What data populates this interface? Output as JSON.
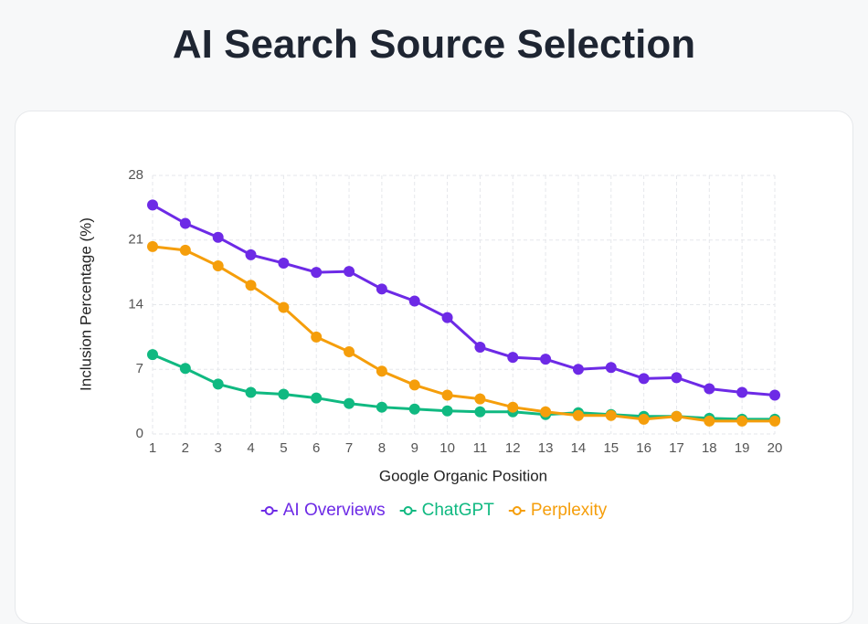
{
  "title": "AI Search Source Selection",
  "chart_data": {
    "type": "line",
    "x_label": "Google Organic Position",
    "y_label": "Inclusion Percentage (%)",
    "x": [
      1,
      2,
      3,
      4,
      5,
      6,
      7,
      8,
      9,
      10,
      11,
      12,
      13,
      14,
      15,
      16,
      17,
      18,
      19,
      20
    ],
    "xlim": [
      1,
      20
    ],
    "xticks": [
      1,
      2,
      3,
      4,
      5,
      6,
      7,
      8,
      9,
      10,
      11,
      12,
      13,
      14,
      15,
      16,
      17,
      18,
      19,
      20
    ],
    "ylim": [
      0,
      28
    ],
    "yticks": [
      0,
      7,
      14,
      21,
      28
    ],
    "grid": true,
    "legend": "bottom",
    "series": [
      {
        "name": "AI Overviews",
        "color": "#6d2ae6",
        "values": [
          24.8,
          22.8,
          21.3,
          19.4,
          18.5,
          17.5,
          17.6,
          15.7,
          14.4,
          12.6,
          9.4,
          8.3,
          8.1,
          7.0,
          7.2,
          6.0,
          6.1,
          4.9,
          4.5,
          4.2
        ]
      },
      {
        "name": "ChatGPT",
        "color": "#10b981",
        "values": [
          8.6,
          7.1,
          5.4,
          4.5,
          4.3,
          3.9,
          3.3,
          2.9,
          2.7,
          2.5,
          2.4,
          2.4,
          2.1,
          2.3,
          2.1,
          1.9,
          1.9,
          1.7,
          1.6,
          1.6
        ]
      },
      {
        "name": "Perplexity",
        "color": "#f59e0b",
        "values": [
          20.3,
          19.9,
          18.2,
          16.1,
          13.7,
          10.5,
          8.9,
          6.8,
          5.3,
          4.2,
          3.8,
          2.9,
          2.4,
          2.0,
          2.0,
          1.6,
          1.9,
          1.4,
          1.4,
          1.4
        ]
      }
    ]
  }
}
